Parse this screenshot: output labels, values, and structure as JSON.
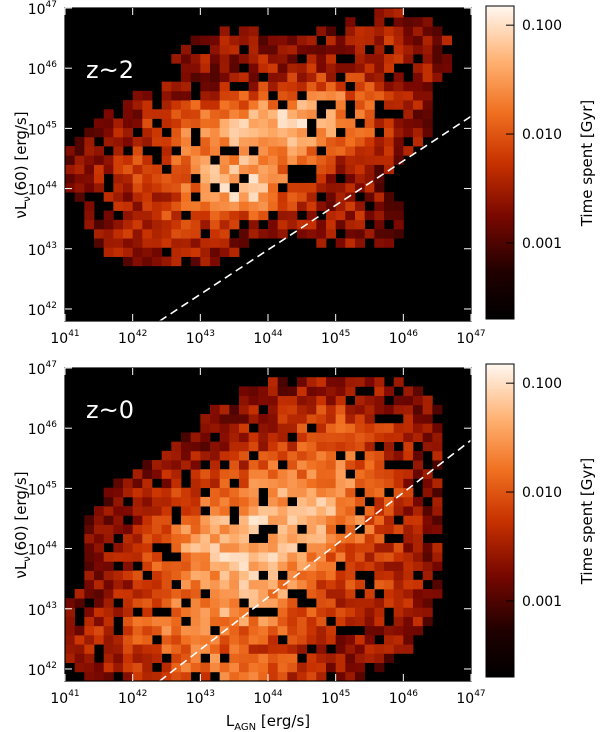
{
  "chart_data": [
    {
      "type": "heatmap",
      "annotation": "z~2",
      "xlim_log10": [
        41,
        47
      ],
      "ylim_log10": [
        41.8,
        47
      ],
      "xticks": [
        {
          "base": "10",
          "exp": "41"
        },
        {
          "base": "10",
          "exp": "42"
        },
        {
          "base": "10",
          "exp": "43"
        },
        {
          "base": "10",
          "exp": "44"
        },
        {
          "base": "10",
          "exp": "45"
        },
        {
          "base": "10",
          "exp": "46"
        },
        {
          "base": "10",
          "exp": "47"
        }
      ],
      "yticks": [
        {
          "base": "10",
          "exp": "42"
        },
        {
          "base": "10",
          "exp": "43"
        },
        {
          "base": "10",
          "exp": "44"
        },
        {
          "base": "10",
          "exp": "45"
        },
        {
          "base": "10",
          "exp": "46"
        },
        {
          "base": "10",
          "exp": "47"
        }
      ],
      "ylabel": {
        "nu": "ν",
        "L": "L",
        "sub": "ν",
        "rest": "(60) [erg/s]"
      },
      "reference_line": {
        "style": "dashed",
        "color": "#ffffff",
        "x_log10": [
          42.4,
          47
        ],
        "y_log10": [
          41.8,
          45.2
        ]
      },
      "colorbar": {
        "label": "Time spent [Gyr]",
        "scale": "log",
        "range": [
          0.0002,
          0.15
        ],
        "ticks": [
          "0.100",
          "0.010",
          "0.001"
        ],
        "tick_values": [
          0.1,
          0.01,
          0.001
        ]
      },
      "density_blobs": [
        {
          "x": 43.6,
          "y": 44.0,
          "sx": 0.55,
          "sy": 0.35,
          "w": 1.0
        },
        {
          "x": 44.2,
          "y": 45.0,
          "sx": 0.8,
          "sy": 0.45,
          "w": 0.75
        },
        {
          "x": 43.0,
          "y": 45.0,
          "sx": 0.7,
          "sy": 0.35,
          "w": 0.5
        },
        {
          "x": 42.5,
          "y": 43.3,
          "sx": 0.6,
          "sy": 0.35,
          "w": 0.4
        },
        {
          "x": 45.0,
          "y": 45.3,
          "sx": 0.7,
          "sy": 0.5,
          "w": 0.45
        },
        {
          "x": 42.2,
          "y": 44.3,
          "sx": 0.8,
          "sy": 0.35,
          "w": 0.35
        },
        {
          "x": 45.8,
          "y": 46.3,
          "sx": 0.6,
          "sy": 0.4,
          "w": 0.25
        },
        {
          "x": 43.5,
          "y": 46.3,
          "sx": 0.7,
          "sy": 0.25,
          "w": 0.18
        },
        {
          "x": 45.3,
          "y": 43.5,
          "sx": 0.5,
          "sy": 0.35,
          "w": 0.22
        }
      ]
    },
    {
      "type": "heatmap",
      "annotation": "z~0",
      "xlim_log10": [
        41,
        47
      ],
      "ylim_log10": [
        41.8,
        47
      ],
      "xticks": [
        {
          "base": "10",
          "exp": "41"
        },
        {
          "base": "10",
          "exp": "42"
        },
        {
          "base": "10",
          "exp": "43"
        },
        {
          "base": "10",
          "exp": "44"
        },
        {
          "base": "10",
          "exp": "45"
        },
        {
          "base": "10",
          "exp": "46"
        },
        {
          "base": "10",
          "exp": "47"
        }
      ],
      "yticks": [
        {
          "base": "10",
          "exp": "42"
        },
        {
          "base": "10",
          "exp": "43"
        },
        {
          "base": "10",
          "exp": "44"
        },
        {
          "base": "10",
          "exp": "45"
        },
        {
          "base": "10",
          "exp": "46"
        },
        {
          "base": "10",
          "exp": "47"
        }
      ],
      "ylabel": {
        "nu": "ν",
        "L": "L",
        "sub": "ν",
        "rest": "(60) [erg/s]"
      },
      "xlabel": {
        "L": "L",
        "sub": "AGN",
        "rest": " [erg/s]"
      },
      "reference_line": {
        "style": "dashed",
        "color": "#ffffff",
        "x_log10": [
          42.4,
          47
        ],
        "y_log10": [
          41.8,
          45.8
        ]
      },
      "colorbar": {
        "label": "Time spent [Gyr]",
        "scale": "log",
        "range": [
          0.0002,
          0.15
        ],
        "ticks": [
          "0.100",
          "0.010",
          "0.001"
        ],
        "tick_values": [
          0.1,
          0.01,
          0.001
        ]
      },
      "density_blobs": [
        {
          "x": 43.2,
          "y": 44.0,
          "sx": 0.9,
          "sy": 0.7,
          "w": 0.7
        },
        {
          "x": 44.3,
          "y": 44.6,
          "sx": 0.9,
          "sy": 0.8,
          "w": 0.6
        },
        {
          "x": 42.5,
          "y": 42.6,
          "sx": 0.9,
          "sy": 0.4,
          "w": 0.5
        },
        {
          "x": 43.5,
          "y": 42.0,
          "sx": 0.9,
          "sy": 0.2,
          "w": 0.6
        },
        {
          "x": 45.2,
          "y": 45.0,
          "sx": 0.7,
          "sy": 0.7,
          "w": 0.4
        },
        {
          "x": 45.0,
          "y": 46.2,
          "sx": 0.9,
          "sy": 0.4,
          "w": 0.28
        },
        {
          "x": 45.8,
          "y": 43.3,
          "sx": 0.4,
          "sy": 0.6,
          "w": 0.25
        },
        {
          "x": 44.0,
          "y": 43.0,
          "sx": 0.9,
          "sy": 0.5,
          "w": 0.45
        }
      ]
    }
  ]
}
